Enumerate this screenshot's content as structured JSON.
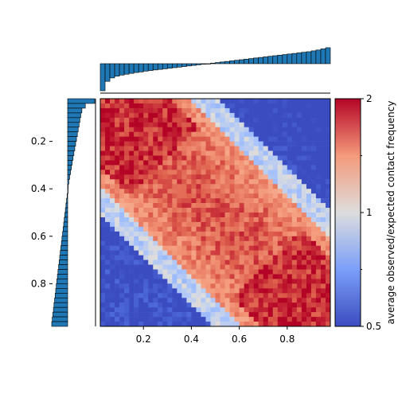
{
  "chart_data": {
    "type": "heatmap",
    "title": "",
    "xlabel": "",
    "ylabel": "",
    "xlim": [
      0.02,
      0.98
    ],
    "ylim": [
      0.02,
      0.98
    ],
    "y_inverted": true,
    "grid_size": 48,
    "xticks": [
      {
        "value": 0.2,
        "label": "0.2"
      },
      {
        "value": 0.4,
        "label": "0.4"
      },
      {
        "value": 0.6,
        "label": "0.6"
      },
      {
        "value": 0.8,
        "label": "0.8"
      }
    ],
    "yticks": [
      {
        "value": 0.2,
        "label": "0.2"
      },
      {
        "value": 0.4,
        "label": "0.4"
      },
      {
        "value": 0.6,
        "label": "0.6"
      },
      {
        "value": 0.8,
        "label": "0.8"
      }
    ],
    "colorbar": {
      "label": "average observed/expected contact frequency",
      "scale": "log",
      "min": 0.5,
      "max": 2,
      "ticks": [
        {
          "value": 2,
          "label": "2"
        },
        {
          "value": 1,
          "label": "1"
        },
        {
          "value": 0.5,
          "label": "0.5"
        }
      ],
      "colormap": "coolwarm"
    },
    "marginal_top": {
      "type": "bar",
      "baseline": 0,
      "note_values": "log2 ratio per column, negative at x≈0, positive at x≈1",
      "values": [
        -0.95,
        -0.62,
        -0.5,
        -0.44,
        -0.4,
        -0.37,
        -0.34,
        -0.31,
        -0.29,
        -0.26,
        -0.24,
        -0.22,
        -0.2,
        -0.18,
        -0.16,
        -0.14,
        -0.12,
        -0.1,
        -0.08,
        -0.06,
        -0.04,
        -0.02,
        0.0,
        0.02,
        0.04,
        0.06,
        0.08,
        0.1,
        0.12,
        0.14,
        0.16,
        0.18,
        0.2,
        0.22,
        0.24,
        0.26,
        0.28,
        0.3,
        0.32,
        0.34,
        0.36,
        0.38,
        0.4,
        0.42,
        0.45,
        0.48,
        0.52,
        0.56
      ]
    },
    "marginal_left": {
      "type": "bar",
      "baseline": 0,
      "values": [
        0.95,
        0.62,
        0.5,
        0.46,
        0.43,
        0.4,
        0.37,
        0.34,
        0.31,
        0.28,
        0.25,
        0.22,
        0.19,
        0.16,
        0.13,
        0.1,
        0.07,
        0.04,
        0.02,
        0.0,
        -0.02,
        -0.04,
        -0.06,
        -0.08,
        -0.1,
        -0.12,
        -0.14,
        -0.16,
        -0.18,
        -0.2,
        -0.22,
        -0.24,
        -0.26,
        -0.28,
        -0.3,
        -0.32,
        -0.34,
        -0.36,
        -0.38,
        -0.4,
        -0.42,
        -0.44,
        -0.46,
        -0.48,
        -0.5,
        -0.52,
        -0.54,
        -0.56
      ]
    }
  }
}
